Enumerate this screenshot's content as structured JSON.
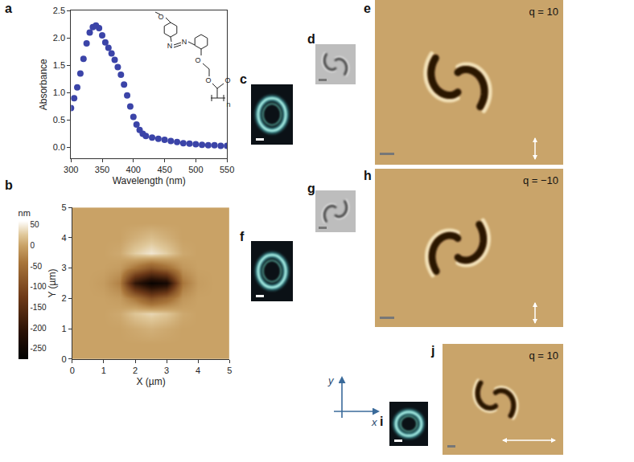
{
  "chart_data": [
    {
      "type": "scatter",
      "panel": "a",
      "marker": "circle",
      "color": "#3b44a8",
      "x_label": "Wavelength (nm)",
      "y_label": "Absorbance",
      "x": [
        300,
        305,
        310,
        315,
        320,
        325,
        330,
        335,
        340,
        345,
        350,
        355,
        360,
        365,
        370,
        375,
        380,
        385,
        390,
        395,
        400,
        405,
        410,
        415,
        420,
        430,
        440,
        450,
        460,
        470,
        480,
        490,
        500,
        510,
        520,
        530,
        540,
        550
      ],
      "values": [
        0.72,
        0.9,
        1.1,
        1.35,
        1.62,
        1.9,
        2.1,
        2.2,
        2.23,
        2.18,
        2.05,
        1.92,
        1.82,
        1.72,
        1.6,
        1.47,
        1.33,
        1.15,
        0.95,
        0.75,
        0.56,
        0.42,
        0.32,
        0.25,
        0.21,
        0.18,
        0.16,
        0.14,
        0.12,
        0.1,
        0.08,
        0.07,
        0.06,
        0.05,
        0.04,
        0.04,
        0.03,
        0.03
      ],
      "xlim": [
        300,
        550
      ],
      "xticks": [
        300,
        350,
        400,
        450,
        500,
        550
      ],
      "ylim": [
        -0.2,
        2.5
      ],
      "yticks": [
        {
          "value": 0,
          "label": "0.0"
        },
        {
          "value": 0.5,
          "label": "0.5"
        },
        {
          "value": 1,
          "label": "1.0"
        },
        {
          "value": 1.5,
          "label": "1.5"
        },
        {
          "value": 2,
          "label": "2.0"
        },
        {
          "value": 2.5,
          "label": "2.5"
        }
      ],
      "grid": false
    },
    {
      "type": "heatmap",
      "panel": "b",
      "x_label": "X (µm)",
      "y_label": "Y (µm)",
      "x": [
        0,
        0.5,
        1,
        1.5,
        2,
        2.5,
        3,
        3.5,
        4,
        4.5,
        5
      ],
      "y": [
        0,
        0.5,
        1,
        1.5,
        2,
        2.5,
        3,
        3.5,
        4,
        4.5,
        5
      ],
      "z": [
        [
          0,
          0,
          0,
          0,
          0,
          0,
          0,
          0,
          0,
          0,
          0
        ],
        [
          0,
          0,
          0,
          0,
          0,
          0,
          0,
          0,
          0,
          0,
          0
        ],
        [
          0,
          0,
          0,
          0,
          5,
          10,
          5,
          0,
          0,
          0,
          0
        ],
        [
          0,
          0,
          0,
          5,
          25,
          35,
          25,
          5,
          0,
          0,
          0
        ],
        [
          0,
          0,
          0,
          -5,
          -40,
          -90,
          -60,
          -10,
          0,
          0,
          0
        ],
        [
          0,
          0,
          -5,
          -30,
          -200,
          -260,
          -240,
          -40,
          -5,
          0,
          0
        ],
        [
          0,
          0,
          0,
          -5,
          -40,
          -80,
          -50,
          -10,
          0,
          0,
          0
        ],
        [
          0,
          0,
          0,
          5,
          30,
          45,
          30,
          5,
          0,
          0,
          0
        ],
        [
          0,
          0,
          0,
          0,
          10,
          20,
          10,
          0,
          0,
          0,
          0
        ],
        [
          0,
          0,
          0,
          0,
          0,
          0,
          0,
          0,
          0,
          0,
          0
        ],
        [
          0,
          0,
          0,
          0,
          0,
          0,
          0,
          0,
          0,
          0,
          0
        ]
      ],
      "xlim": [
        0,
        5
      ],
      "xticks": [
        0,
        1,
        2,
        3,
        4,
        5
      ],
      "ylim": [
        0,
        5
      ],
      "yticks": [
        0,
        1,
        2,
        3,
        4,
        5
      ],
      "colorbar": {
        "title": "nm",
        "range": [
          -275,
          60
        ],
        "ticks": [
          50,
          0,
          -50,
          -100,
          -150,
          -200,
          -250
        ]
      },
      "grid": false
    }
  ],
  "structure": [
    "O",
    "N",
    "N",
    "O",
    "O",
    "O",
    "n"
  ],
  "panels": [
    {
      "label": "c"
    },
    {
      "label": "d"
    },
    {
      "label": "e",
      "text": "q = 10"
    },
    {
      "label": "f"
    },
    {
      "label": "g"
    },
    {
      "label": "h",
      "text": "q = −10"
    },
    {
      "label": "i"
    },
    {
      "label": "j",
      "text": "q = 10"
    }
  ],
  "axis_key": [
    "x",
    "y"
  ]
}
